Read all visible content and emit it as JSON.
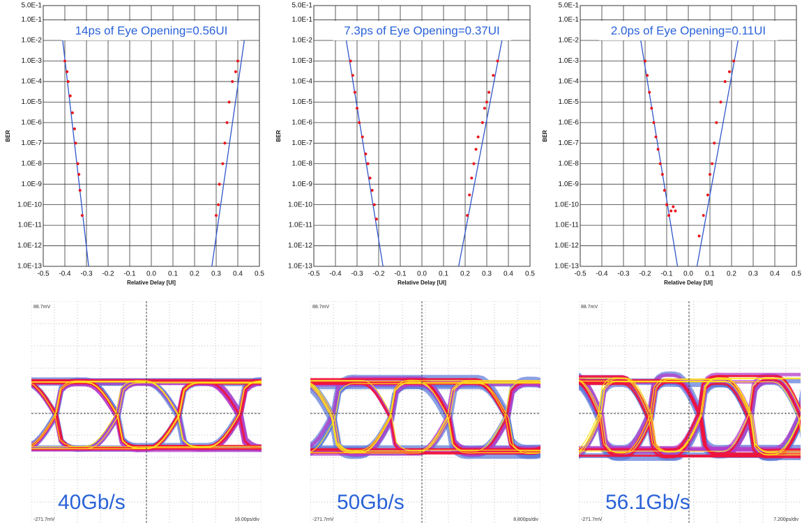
{
  "chart_data": [
    {
      "type": "scatter",
      "title": "14ps of Eye Opening=0.56UI",
      "xlabel": "Relative Delay [UI]",
      "ylabel": "BER",
      "log_y": true,
      "grid": true,
      "xlim": [
        -0.5,
        0.5
      ],
      "ylim": [
        1e-13,
        0.5
      ],
      "xticks": [
        -0.5,
        -0.4,
        -0.3,
        -0.2,
        -0.1,
        {
          "value": 0,
          "label": "0.0"
        },
        0.1,
        0.2,
        0.3,
        0.4,
        0.5
      ],
      "yticks": [
        {
          "value": 0.5,
          "label": "5.0E-1"
        },
        {
          "value": 0.1,
          "label": "1.0E-1"
        },
        {
          "value": 0.01,
          "label": "1.0E-2"
        },
        {
          "value": 0.001,
          "label": "1.0E-3"
        },
        {
          "value": 0.0001,
          "label": "1.0E-4"
        },
        {
          "value": 1e-05,
          "label": "1.0E-5"
        },
        {
          "value": 1e-06,
          "label": "1.0E-6"
        },
        {
          "value": 1e-07,
          "label": "1.0E-7"
        },
        {
          "value": 1e-08,
          "label": "1.0E-8"
        },
        {
          "value": 1e-09,
          "label": "1.0E-9"
        },
        {
          "value": 1e-10,
          "label": "1.0E-10"
        },
        {
          "value": 1e-11,
          "label": "1.0E-11"
        },
        {
          "value": 1e-12,
          "label": "1.0E-12"
        },
        {
          "value": 1e-13,
          "label": "1.0E-13"
        }
      ],
      "series": [
        {
          "mode": "line",
          "color": "#2f55c8",
          "x": [
            -0.41,
            -0.29
          ],
          "values": [
            0.01,
            1e-13
          ]
        },
        {
          "mode": "line",
          "color": "#2f55c8",
          "x": [
            0.28,
            0.43
          ],
          "values": [
            1e-13,
            0.01
          ]
        },
        {
          "mode": "markers",
          "color": "#e8141c",
          "x": [
            -0.4,
            -0.39,
            -0.385,
            -0.375,
            -0.365,
            -0.355,
            -0.35,
            -0.34,
            -0.335,
            -0.33,
            -0.32
          ],
          "values": [
            0.001,
            0.0003,
            0.0001,
            2e-05,
            3e-06,
            5e-07,
            1e-07,
            1e-08,
            3e-09,
            5e-10,
            3e-11
          ]
        },
        {
          "mode": "markers",
          "color": "#e8141c",
          "x": [
            0.3,
            0.31,
            0.315,
            0.33,
            0.34,
            0.35,
            0.36,
            0.375,
            0.39,
            0.4
          ],
          "values": [
            3e-11,
            1e-10,
            1e-09,
            1e-08,
            1e-07,
            1e-06,
            1e-05,
            0.0001,
            0.0003,
            0.001
          ]
        }
      ]
    },
    {
      "type": "scatter",
      "title": "7.3ps of Eye Opening=0.37UI",
      "xlabel": "Relative Delay [UI]",
      "ylabel": "BER",
      "log_y": true,
      "grid": true,
      "xlim": [
        -0.5,
        0.5
      ],
      "ylim": [
        1e-13,
        0.5
      ],
      "xticks": [
        -0.5,
        -0.4,
        -0.3,
        -0.2,
        -0.1,
        {
          "value": 0,
          "label": "0.0"
        },
        0.1,
        0.2,
        0.3,
        0.4,
        0.5
      ],
      "yticks": [
        {
          "value": 0.5,
          "label": "5.0E-1"
        },
        {
          "value": 0.1,
          "label": "1.0E-1"
        },
        {
          "value": 0.01,
          "label": "1.0E-2"
        },
        {
          "value": 0.001,
          "label": "1.0E-3"
        },
        {
          "value": 0.0001,
          "label": "1.0E-4"
        },
        {
          "value": 1e-05,
          "label": "1.0E-5"
        },
        {
          "value": 1e-06,
          "label": "1.0E-6"
        },
        {
          "value": 1e-07,
          "label": "1.0E-7"
        },
        {
          "value": 1e-08,
          "label": "1.0E-8"
        },
        {
          "value": 1e-09,
          "label": "1.0E-9"
        },
        {
          "value": 1e-10,
          "label": "1.0E-10"
        },
        {
          "value": 1e-11,
          "label": "1.0E-11"
        },
        {
          "value": 1e-12,
          "label": "1.0E-12"
        },
        {
          "value": 1e-13,
          "label": "1.0E-13"
        }
      ],
      "series": [
        {
          "mode": "line",
          "color": "#2f55c8",
          "x": [
            -0.35,
            -0.18
          ],
          "values": [
            0.01,
            1e-13
          ]
        },
        {
          "mode": "line",
          "color": "#2f55c8",
          "x": [
            0.17,
            0.37
          ],
          "values": [
            1e-13,
            0.01
          ]
        },
        {
          "mode": "markers",
          "color": "#e8141c",
          "x": [
            -0.33,
            -0.32,
            -0.31,
            -0.3,
            -0.29,
            -0.275,
            -0.26,
            -0.25,
            -0.24,
            -0.23,
            -0.22,
            -0.21
          ],
          "values": [
            0.001,
            0.0002,
            3e-05,
            5e-06,
            1e-06,
            2e-07,
            3e-08,
            1e-08,
            2e-09,
            5e-10,
            1e-10,
            2e-11
          ]
        },
        {
          "mode": "markers",
          "color": "#e8141c",
          "x": [
            0.21,
            0.22,
            0.23,
            0.24,
            0.25,
            0.26,
            0.28,
            0.29,
            0.3,
            0.31,
            0.33,
            0.35
          ],
          "values": [
            3e-11,
            3e-10,
            2e-09,
            1e-08,
            5e-08,
            2e-07,
            1e-06,
            5e-06,
            1e-05,
            3e-05,
            0.0002,
            0.001
          ]
        }
      ]
    },
    {
      "type": "scatter",
      "title": "2.0ps of Eye Opening=0.11UI",
      "xlabel": "Relative Delay [UI]",
      "ylabel": "BER",
      "log_y": true,
      "grid": true,
      "xlim": [
        -0.5,
        0.5
      ],
      "ylim": [
        1e-13,
        0.5
      ],
      "xticks": [
        -0.5,
        -0.4,
        -0.3,
        -0.2,
        -0.1,
        {
          "value": 0,
          "label": "0.0"
        },
        0.1,
        0.2,
        0.3,
        0.4,
        0.5
      ],
      "yticks": [
        {
          "value": 0.5,
          "label": "5.0E-1"
        },
        {
          "value": 0.1,
          "label": "1.0E-1"
        },
        {
          "value": 0.01,
          "label": "1.0E-2"
        },
        {
          "value": 0.001,
          "label": "1.0E-3"
        },
        {
          "value": 0.0001,
          "label": "1.0E-4"
        },
        {
          "value": 1e-05,
          "label": "1.0E-5"
        },
        {
          "value": 1e-06,
          "label": "1.0E-6"
        },
        {
          "value": 1e-07,
          "label": "1.0E-7"
        },
        {
          "value": 1e-08,
          "label": "1.0E-8"
        },
        {
          "value": 1e-09,
          "label": "1.0E-9"
        },
        {
          "value": 1e-10,
          "label": "1.0E-10"
        },
        {
          "value": 1e-11,
          "label": "1.0E-11"
        },
        {
          "value": 1e-12,
          "label": "1.0E-12"
        },
        {
          "value": 1e-13,
          "label": "1.0E-13"
        }
      ],
      "series": [
        {
          "mode": "line",
          "color": "#2f55c8",
          "x": [
            -0.22,
            -0.05
          ],
          "values": [
            0.01,
            1e-13
          ]
        },
        {
          "mode": "line",
          "color": "#2f55c8",
          "x": [
            0.04,
            0.23
          ],
          "values": [
            1e-13,
            0.01
          ]
        },
        {
          "mode": "markers",
          "color": "#e8141c",
          "x": [
            -0.2,
            -0.19,
            -0.18,
            -0.17,
            -0.16,
            -0.15,
            -0.14,
            -0.13,
            -0.12,
            -0.11,
            -0.1,
            -0.09,
            -0.08,
            -0.07,
            -0.06
          ],
          "values": [
            0.001,
            0.0002,
            3e-05,
            5e-06,
            1e-06,
            2e-07,
            5e-08,
            1e-08,
            3e-09,
            5e-10,
            1e-10,
            3e-11,
            5e-11,
            8e-11,
            5e-11
          ]
        },
        {
          "mode": "markers",
          "color": "#e8141c",
          "x": [
            0.05,
            0.07,
            0.09,
            0.1,
            0.11,
            0.12,
            0.13,
            0.15,
            0.17,
            0.19,
            0.21
          ],
          "values": [
            3e-12,
            3e-11,
            3e-10,
            3e-09,
            1e-08,
            1e-07,
            1e-06,
            1e-05,
            0.0001,
            0.0003,
            0.001
          ]
        }
      ]
    }
  ],
  "eyes": [
    {
      "top": "88.7mV",
      "bottom": "-271.7mV",
      "scale": "16.00ps/div",
      "rate": "40Gb/s"
    },
    {
      "top": "88.7mV",
      "bottom": "-271.7mV",
      "scale": "8.800ps/div",
      "rate": "50Gb/s"
    },
    {
      "top": "88.7mV",
      "bottom": "-271.7mV",
      "scale": "7.200ps/div",
      "rate": "56.1Gb/s"
    }
  ]
}
